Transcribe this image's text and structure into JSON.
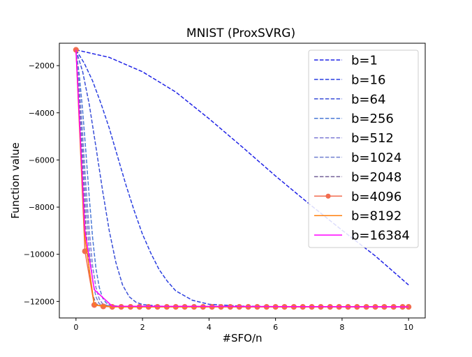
{
  "chart_data": {
    "type": "line",
    "title": "MNIST (ProxSVRG)",
    "xlabel": "#SFO/n",
    "ylabel": "Function value",
    "xlim": [
      -0.5,
      10.5
    ],
    "ylim": [
      -12700,
      -1050
    ],
    "x_ticks": [
      0,
      2,
      4,
      6,
      8,
      10
    ],
    "x_tick_labels": [
      "0",
      "2",
      "4",
      "6",
      "8",
      "10"
    ],
    "y_ticks": [
      -2000,
      -4000,
      -6000,
      -8000,
      -10000,
      -12000
    ],
    "y_tick_labels": [
      "−2000",
      "−4000",
      "−6000",
      "−8000",
      "−10000",
      "−12000"
    ],
    "grid": false,
    "legend_position": "upper right",
    "series": [
      {
        "name": "b=1",
        "color": "#1f22e6",
        "dash": true,
        "marker": false,
        "points": [
          [
            0,
            -1330
          ],
          [
            1,
            -1650
          ],
          [
            2,
            -2260
          ],
          [
            3,
            -3120
          ],
          [
            4,
            -4250
          ],
          [
            5,
            -5450
          ],
          [
            6,
            -6680
          ],
          [
            7,
            -7850
          ],
          [
            8,
            -8980
          ],
          [
            9,
            -10070
          ],
          [
            10,
            -11300
          ]
        ]
      },
      {
        "name": "b=16",
        "color": "#2a3fe0",
        "dash": true,
        "marker": false,
        "points": [
          [
            0,
            -1330
          ],
          [
            0.25,
            -1900
          ],
          [
            0.5,
            -2650
          ],
          [
            0.75,
            -3600
          ],
          [
            1,
            -4650
          ],
          [
            1.25,
            -5850
          ],
          [
            1.5,
            -7050
          ],
          [
            1.75,
            -8150
          ],
          [
            2,
            -9150
          ],
          [
            2.25,
            -9950
          ],
          [
            2.5,
            -10650
          ],
          [
            2.75,
            -11150
          ],
          [
            3,
            -11550
          ],
          [
            3.5,
            -11950
          ],
          [
            4,
            -12120
          ],
          [
            5,
            -12200
          ],
          [
            6,
            -12220
          ],
          [
            7,
            -12230
          ],
          [
            8,
            -12230
          ],
          [
            9,
            -12230
          ],
          [
            10,
            -12230
          ]
        ]
      },
      {
        "name": "b=64",
        "color": "#3a4fd8",
        "dash": true,
        "marker": false,
        "points": [
          [
            0,
            -1330
          ],
          [
            0.2,
            -2250
          ],
          [
            0.4,
            -3650
          ],
          [
            0.6,
            -5450
          ],
          [
            0.8,
            -7300
          ],
          [
            1,
            -9000
          ],
          [
            1.2,
            -10350
          ],
          [
            1.4,
            -11300
          ],
          [
            1.6,
            -11800
          ],
          [
            1.8,
            -12030
          ],
          [
            2,
            -12130
          ],
          [
            2.5,
            -12200
          ],
          [
            3,
            -12220
          ],
          [
            10,
            -12230
          ]
        ]
      },
      {
        "name": "b=256",
        "color": "#4a78d6",
        "dash": true,
        "marker": false,
        "points": [
          [
            0,
            -1330
          ],
          [
            0.1,
            -2400
          ],
          [
            0.2,
            -3900
          ],
          [
            0.3,
            -5700
          ],
          [
            0.4,
            -7600
          ],
          [
            0.5,
            -9300
          ],
          [
            0.6,
            -10600
          ],
          [
            0.7,
            -11400
          ],
          [
            0.8,
            -11850
          ],
          [
            0.9,
            -12050
          ],
          [
            1,
            -12150
          ],
          [
            1.3,
            -12210
          ],
          [
            2,
            -12230
          ],
          [
            10,
            -12230
          ]
        ]
      },
      {
        "name": "b=512",
        "color": "#7b78d4",
        "dash": true,
        "marker": false,
        "points": [
          [
            0,
            -1330
          ],
          [
            0.1,
            -2900
          ],
          [
            0.2,
            -4900
          ],
          [
            0.3,
            -7100
          ],
          [
            0.4,
            -9000
          ],
          [
            0.5,
            -10500
          ],
          [
            0.6,
            -11400
          ],
          [
            0.7,
            -11900
          ],
          [
            0.8,
            -12100
          ],
          [
            1,
            -12200
          ],
          [
            2,
            -12230
          ],
          [
            10,
            -12230
          ]
        ]
      },
      {
        "name": "b=1024",
        "color": "#6f7fd0",
        "dash": true,
        "marker": false,
        "points": [
          [
            0,
            -1330
          ],
          [
            0.1,
            -3300
          ],
          [
            0.2,
            -5600
          ],
          [
            0.3,
            -7900
          ],
          [
            0.4,
            -9800
          ],
          [
            0.5,
            -11100
          ],
          [
            0.6,
            -11800
          ],
          [
            0.7,
            -12100
          ],
          [
            0.9,
            -12200
          ],
          [
            2,
            -12230
          ],
          [
            10,
            -12230
          ]
        ]
      },
      {
        "name": "b=2048",
        "color": "#735f96",
        "dash": true,
        "marker": false,
        "points": [
          [
            0,
            -1330
          ],
          [
            0.1,
            -3800
          ],
          [
            0.2,
            -6400
          ],
          [
            0.3,
            -8900
          ],
          [
            0.4,
            -10700
          ],
          [
            0.5,
            -11700
          ],
          [
            0.6,
            -12100
          ],
          [
            0.8,
            -12200
          ],
          [
            2,
            -12230
          ],
          [
            10,
            -12230
          ]
        ]
      },
      {
        "name": "b=4096",
        "color": "#f26c4f",
        "dash": false,
        "marker": true,
        "points": [
          [
            0,
            -1330
          ],
          [
            0.27,
            -9870
          ],
          [
            0.55,
            -12150
          ],
          [
            0.82,
            -12210
          ],
          [
            1.09,
            -12230
          ],
          [
            1.36,
            -12230
          ],
          [
            1.64,
            -12230
          ],
          [
            1.91,
            -12230
          ],
          [
            2.18,
            -12230
          ],
          [
            2.45,
            -12230
          ],
          [
            2.73,
            -12230
          ],
          [
            3.0,
            -12230
          ],
          [
            3.27,
            -12230
          ],
          [
            3.55,
            -12230
          ],
          [
            3.82,
            -12230
          ],
          [
            4.09,
            -12230
          ],
          [
            4.36,
            -12230
          ],
          [
            4.64,
            -12230
          ],
          [
            4.91,
            -12230
          ],
          [
            5.18,
            -12230
          ],
          [
            5.45,
            -12230
          ],
          [
            5.73,
            -12230
          ],
          [
            6.0,
            -12230
          ],
          [
            6.27,
            -12230
          ],
          [
            6.55,
            -12230
          ],
          [
            6.82,
            -12230
          ],
          [
            7.09,
            -12230
          ],
          [
            7.36,
            -12230
          ],
          [
            7.64,
            -12230
          ],
          [
            7.91,
            -12230
          ],
          [
            8.18,
            -12230
          ],
          [
            8.45,
            -12230
          ],
          [
            8.73,
            -12230
          ],
          [
            9.0,
            -12230
          ],
          [
            9.27,
            -12230
          ],
          [
            9.55,
            -12230
          ],
          [
            9.82,
            -12230
          ],
          [
            10.0,
            -12230
          ]
        ]
      },
      {
        "name": "b=8192",
        "color": "#ff7f0e",
        "dash": false,
        "marker": false,
        "points": [
          [
            0,
            -1330
          ],
          [
            0.27,
            -9300
          ],
          [
            0.55,
            -12150
          ],
          [
            1.09,
            -12230
          ],
          [
            10,
            -12230
          ]
        ]
      },
      {
        "name": "b=16384",
        "color": "#ff00ff",
        "dash": false,
        "marker": false,
        "points": [
          [
            0,
            -1330
          ],
          [
            0.27,
            -9000
          ],
          [
            0.55,
            -11500
          ],
          [
            1.09,
            -12200
          ],
          [
            10,
            -12230
          ]
        ]
      }
    ]
  }
}
